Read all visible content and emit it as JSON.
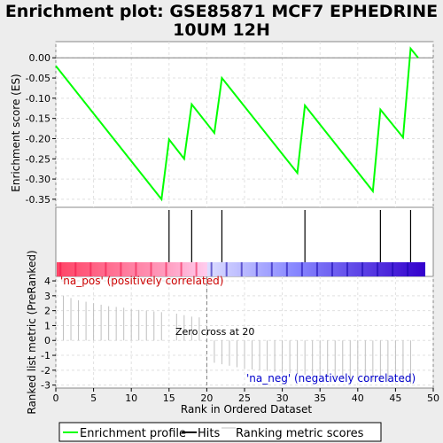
{
  "chart_data": {
    "type": "line",
    "title_line1": "Enrichment plot: GSE85871 MCF7 EPHEDRINE",
    "title_line2": "10UM 12H",
    "ylabel_top": "Enrichment score (ES)",
    "ylabel_bottom": "Ranked list metric (PreRanked)",
    "xlabel": "Rank in Ordered Dataset",
    "xlim": [
      0,
      50
    ],
    "ylim_top": [
      -0.37,
      0.04
    ],
    "ylim_bottom": [
      -3.2,
      4.3
    ],
    "x_ticks": [
      "0",
      "5",
      "10",
      "15",
      "20",
      "25",
      "30",
      "35",
      "40",
      "45",
      "50"
    ],
    "y_ticks_top": [
      "0.00",
      "-0.05",
      "-0.10",
      "-0.15",
      "-0.20",
      "-0.25",
      "-0.30",
      "-0.35"
    ],
    "y_ticks_bottom": [
      "4",
      "3",
      "2",
      "1",
      "0",
      "-1",
      "-2",
      "-3"
    ],
    "enrichment_profile": {
      "x": [
        0,
        14,
        15,
        17,
        18,
        21,
        22,
        32,
        33,
        42,
        43,
        46,
        47,
        48
      ],
      "y": [
        -0.02,
        -0.35,
        -0.202,
        -0.25,
        -0.115,
        -0.186,
        -0.05,
        -0.285,
        -0.118,
        -0.33,
        -0.128,
        -0.197,
        0.023,
        0.0
      ]
    },
    "hits": [
      15,
      18,
      22,
      33,
      43,
      47
    ],
    "ranking_metric": {
      "x": [
        1,
        2,
        3,
        4,
        5,
        6,
        7,
        8,
        9,
        10,
        11,
        12,
        13,
        14,
        16,
        17,
        18,
        19,
        21,
        22,
        23,
        24,
        25,
        26,
        27,
        28,
        29,
        30,
        31,
        32,
        33,
        34,
        35,
        36,
        37,
        38,
        39,
        40,
        41,
        42,
        43,
        44,
        45,
        46,
        47
      ],
      "y": [
        3.0,
        2.85,
        2.7,
        2.6,
        2.5,
        2.4,
        2.3,
        2.25,
        2.2,
        2.1,
        2.05,
        2.0,
        1.95,
        1.9,
        1.8,
        1.7,
        1.6,
        1.55,
        -1.5,
        -1.6,
        -1.7,
        -1.8,
        -1.9,
        -1.95,
        -2.0,
        -2.05,
        -2.1,
        -2.15,
        -2.2,
        -2.25,
        -2.3,
        -2.35,
        -2.4,
        -2.45,
        -2.5,
        -2.55,
        -2.6,
        -2.6,
        -2.65,
        -2.7,
        -2.75,
        -2.75,
        -2.8,
        -2.85,
        -2.9
      ]
    },
    "zero_cross": 20,
    "zero_cross_label": "Zero cross at 20",
    "pos_label": "'na_pos' (positively correlated)",
    "neg_label": "'na_neg' (negatively correlated)",
    "legend": {
      "placement": "bottom",
      "items": [
        "Enrichment profile",
        "Hits",
        "Ranking metric scores"
      ]
    },
    "colors": {
      "profile": "#00ff00",
      "hits": "#000000",
      "metric": "#c0c0c0",
      "pos_label": "#cc0000",
      "neg_label": "#0000cc",
      "zero_line": "#808080",
      "grid": "#e0e0e0"
    },
    "grid": true
  }
}
